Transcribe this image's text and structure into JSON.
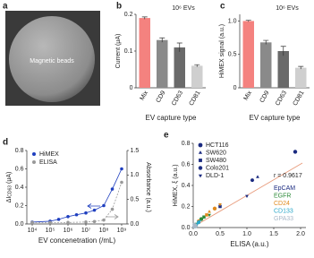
{
  "image_panel": {
    "label": "a",
    "caption": "Magnetic beads"
  },
  "chart_data": [
    {
      "type": "bar",
      "label": "b",
      "title": "10⁶ EVs",
      "y_label": "Current (μA)",
      "x_label": "EV capture type",
      "categories": [
        "Mix",
        "CD9",
        "CD63",
        "CD81"
      ],
      "values": [
        0.19,
        0.13,
        0.11,
        0.06
      ],
      "errors": [
        0.003,
        0.006,
        0.012,
        0.003
      ],
      "colors": [
        "#f4827f",
        "#8a8a8a",
        "#6a6a6a",
        "#cfcfcf"
      ],
      "ylim": [
        0,
        0.2
      ],
      "yticks": [
        0,
        0.1,
        0.2
      ]
    },
    {
      "type": "bar",
      "label": "c",
      "title": "10⁶ EVs",
      "y_label": "HiMEX signal (a.u.)",
      "x_label": "EV capture type",
      "categories": [
        "Mix",
        "CD9",
        "CD63",
        "CD81"
      ],
      "values": [
        1.0,
        0.68,
        0.55,
        0.3
      ],
      "errors": [
        0.01,
        0.03,
        0.07,
        0.02
      ],
      "colors": [
        "#f4827f",
        "#8a8a8a",
        "#6a6a6a",
        "#cfcfcf"
      ],
      "ylim": [
        0,
        1.1
      ],
      "yticks": [
        0,
        0.5,
        {
          "value": 1,
          "label": "1.0"
        }
      ]
    },
    {
      "type": "line",
      "label": "d",
      "log_x": true,
      "y_label": [
        "ΔI",
        "CD63",
        " (μA)"
      ],
      "y2_label": "Absorbance (a.u.)",
      "x_label": "EV concenetration (/mL)",
      "xlim": [
        5000,
        2000000000
      ],
      "xticks": [
        {
          "value": 10000,
          "label": "10⁴"
        },
        {
          "value": 100000,
          "label": "10⁵"
        },
        {
          "value": 1000000,
          "label": "10⁶"
        },
        {
          "value": 10000000,
          "label": "10⁷"
        },
        {
          "value": 100000000,
          "label": "10⁸"
        },
        {
          "value": 1000000000,
          "label": "10⁹"
        }
      ],
      "ylim": [
        0,
        0.8
      ],
      "yticks": [
        {
          "value": 0,
          "label": "0.0"
        },
        0.2,
        0.4,
        0.6,
        0.8
      ],
      "y2lim": [
        0,
        1.5
      ],
      "y2ticks": [
        {
          "value": 0,
          "label": "0.0"
        },
        0.5,
        {
          "value": 1,
          "label": "1.0"
        },
        1.5
      ],
      "series": [
        {
          "name": "HiMEX",
          "color": "#1f3fbf",
          "x": [
            10000,
            100000,
            300000,
            1000000,
            3000000,
            10000000,
            30000000,
            100000000,
            300000000,
            1000000000
          ],
          "values": [
            0.02,
            0.03,
            0.05,
            0.08,
            0.1,
            0.12,
            0.15,
            0.2,
            0.38,
            0.6
          ]
        },
        {
          "name": "ELISA",
          "color": "#999999",
          "axis": "y2",
          "x": [
            10000,
            100000,
            1000000,
            10000000,
            30000000,
            100000000,
            300000000,
            1000000000
          ],
          "values": [
            0.03,
            0.03,
            0.03,
            0.04,
            0.05,
            0.08,
            0.3,
            0.85
          ]
        }
      ]
    },
    {
      "type": "scatter",
      "label": "e",
      "y_label": "HiMEX, ξ (a.u.)",
      "x_label": "ELISA (a.u.)",
      "annotation": "r = 0.9617",
      "xlim": [
        0,
        2.1
      ],
      "xticks": [
        {
          "value": 0,
          "label": "0.0"
        },
        0.5,
        {
          "value": 1,
          "label": "1.0"
        },
        1.5,
        {
          "value": 2,
          "label": "2.0"
        }
      ],
      "ylim": [
        0,
        0.8
      ],
      "yticks": [
        {
          "value": 0,
          "label": "0.0"
        },
        0.2,
        0.4,
        0.6,
        0.8
      ],
      "cell_lines": [
        {
          "name": "HCT116",
          "marker": "circle"
        },
        {
          "name": "SW620",
          "marker": "triangle-up"
        },
        {
          "name": "SW480",
          "marker": "square"
        },
        {
          "name": "Colo201",
          "marker": "hexagon"
        },
        {
          "name": "DLD-1",
          "marker": "triangle-down"
        }
      ],
      "series": [
        {
          "name": "EpCAM",
          "color": "#1a2a80",
          "x": [
            1.9,
            1.2,
            0.5,
            1.1,
            1.0
          ],
          "values": [
            0.72,
            0.48,
            0.2,
            0.45,
            0.3
          ]
        },
        {
          "name": "EGFR",
          "color": "#2e8b3a",
          "x": [
            0.15,
            0.1,
            0.2,
            0.05,
            0.3
          ],
          "values": [
            0.08,
            0.05,
            0.1,
            0.03,
            0.12
          ]
        },
        {
          "name": "CD24",
          "color": "#e08a1e",
          "x": [
            0.4,
            0.3,
            0.25,
            0.1,
            0.5
          ],
          "values": [
            0.18,
            0.15,
            0.12,
            0.06,
            0.22
          ]
        },
        {
          "name": "CD133",
          "color": "#2aa7c9",
          "x": [
            0.05,
            0.08,
            0.1,
            0.03,
            0.12
          ],
          "values": [
            0.02,
            0.04,
            0.05,
            0.01,
            0.06
          ]
        },
        {
          "name": "GPA33",
          "color": "#a9b8c8",
          "x": [
            0.02,
            0.05,
            0.04,
            0.02,
            0.06
          ],
          "values": [
            0.01,
            0.02,
            0.02,
            0.03,
            0.01
          ]
        }
      ]
    }
  ]
}
